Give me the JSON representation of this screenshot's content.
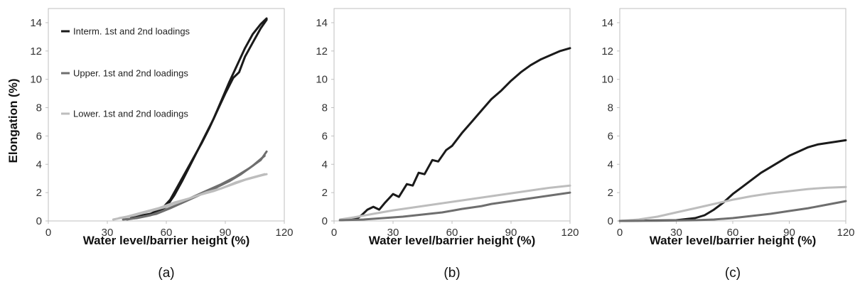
{
  "figure": {
    "y_axis_title": "Elongation (%)",
    "x_axis_title": "Water level/barrier height (%)"
  },
  "colors": {
    "interm": "#1a1a1a",
    "upper": "#6e6e6e",
    "lower": "#bdbdbd",
    "axis": "#bfbfbf"
  },
  "chart_data": [
    {
      "type": "line",
      "panel_label": "(a)",
      "xlabel": "Water level/barrier height (%)",
      "ylabel": "Elongation (%)",
      "xlim": [
        0,
        120
      ],
      "ylim": [
        0,
        15
      ],
      "xticks": [
        0,
        30,
        60,
        90,
        120
      ],
      "yticks": [
        0,
        2,
        4,
        6,
        8,
        10,
        12,
        14
      ],
      "legend_placement": "top-left",
      "series": [
        {
          "name": "Interm. 1st and 2nd loadings",
          "color_key": "interm",
          "points": [
            [
              42,
              0.2
            ],
            [
              50,
              0.4
            ],
            [
              56,
              0.7
            ],
            [
              60,
              1.0
            ],
            [
              64,
              1.8
            ],
            [
              68,
              2.8
            ],
            [
              72,
              3.9
            ],
            [
              76,
              5.0
            ],
            [
              80,
              6.1
            ],
            [
              84,
              7.2
            ],
            [
              88,
              8.5
            ],
            [
              92,
              9.8
            ],
            [
              96,
              11.0
            ],
            [
              100,
              12.2
            ],
            [
              104,
              13.2
            ],
            [
              108,
              13.9
            ],
            [
              111,
              14.3
            ]
          ]
        },
        {
          "name": "",
          "color_key": "interm",
          "points": [
            [
              44,
              0.3
            ],
            [
              52,
              0.5
            ],
            [
              58,
              0.9
            ],
            [
              62,
              1.5
            ],
            [
              66,
              2.5
            ],
            [
              70,
              3.5
            ],
            [
              74,
              4.5
            ],
            [
              78,
              5.5
            ],
            [
              82,
              6.6
            ],
            [
              86,
              7.8
            ],
            [
              90,
              9.0
            ],
            [
              94,
              10.1
            ],
            [
              97,
              10.5
            ],
            [
              100,
              11.6
            ],
            [
              104,
              12.6
            ],
            [
              108,
              13.6
            ],
            [
              111,
              14.2
            ]
          ]
        },
        {
          "name": "Upper. 1st and 2nd loadings",
          "color_key": "upper",
          "points": [
            [
              38,
              0.1
            ],
            [
              45,
              0.2
            ],
            [
              52,
              0.4
            ],
            [
              58,
              0.7
            ],
            [
              65,
              1.1
            ],
            [
              72,
              1.6
            ],
            [
              80,
              2.1
            ],
            [
              88,
              2.6
            ],
            [
              95,
              3.1
            ],
            [
              102,
              3.7
            ],
            [
              108,
              4.3
            ],
            [
              111,
              4.9
            ]
          ]
        },
        {
          "name": "",
          "color_key": "upper",
          "points": [
            [
              40,
              0.1
            ],
            [
              48,
              0.3
            ],
            [
              55,
              0.5
            ],
            [
              62,
              0.9
            ],
            [
              70,
              1.4
            ],
            [
              78,
              1.9
            ],
            [
              86,
              2.4
            ],
            [
              92,
              2.8
            ],
            [
              98,
              3.3
            ],
            [
              104,
              3.9
            ],
            [
              110,
              4.6
            ]
          ]
        },
        {
          "name": "Lower. 1st and 2nd loadings",
          "color_key": "lower",
          "points": [
            [
              33,
              0.1
            ],
            [
              40,
              0.3
            ],
            [
              48,
              0.6
            ],
            [
              56,
              0.9
            ],
            [
              64,
              1.3
            ],
            [
              72,
              1.6
            ],
            [
              80,
              2.0
            ],
            [
              88,
              2.3
            ],
            [
              95,
              2.7
            ],
            [
              102,
              3.0
            ],
            [
              110,
              3.3
            ]
          ]
        },
        {
          "name": "",
          "color_key": "lower",
          "points": [
            [
              36,
              0.2
            ],
            [
              44,
              0.4
            ],
            [
              52,
              0.7
            ],
            [
              60,
              1.0
            ],
            [
              68,
              1.4
            ],
            [
              76,
              1.8
            ],
            [
              84,
              2.1
            ],
            [
              92,
              2.5
            ],
            [
              100,
              2.9
            ],
            [
              108,
              3.2
            ],
            [
              111,
              3.3
            ]
          ]
        }
      ]
    },
    {
      "type": "line",
      "panel_label": "(b)",
      "xlabel": "Water level/barrier height (%)",
      "ylabel": "",
      "xlim": [
        0,
        120
      ],
      "ylim": [
        0,
        15
      ],
      "xticks": [
        0,
        30,
        60,
        90,
        120
      ],
      "yticks": [
        0,
        2,
        4,
        6,
        8,
        10,
        12,
        14
      ],
      "series": [
        {
          "name": "",
          "color_key": "interm",
          "points": [
            [
              3,
              0.05
            ],
            [
              8,
              0.1
            ],
            [
              12,
              0.2
            ],
            [
              14,
              0.4
            ],
            [
              17,
              0.8
            ],
            [
              20,
              1.0
            ],
            [
              23,
              0.8
            ],
            [
              26,
              1.3
            ],
            [
              30,
              1.9
            ],
            [
              33,
              1.7
            ],
            [
              37,
              2.6
            ],
            [
              40,
              2.5
            ],
            [
              43,
              3.4
            ],
            [
              46,
              3.3
            ],
            [
              50,
              4.3
            ],
            [
              53,
              4.2
            ],
            [
              57,
              5.0
            ],
            [
              60,
              5.3
            ],
            [
              65,
              6.2
            ],
            [
              70,
              7.0
            ],
            [
              75,
              7.8
            ],
            [
              80,
              8.6
            ],
            [
              85,
              9.2
            ],
            [
              90,
              9.9
            ],
            [
              95,
              10.5
            ],
            [
              100,
              11.0
            ],
            [
              105,
              11.4
            ],
            [
              110,
              11.7
            ],
            [
              115,
              12.0
            ],
            [
              120,
              12.2
            ]
          ]
        },
        {
          "name": "",
          "color_key": "lower",
          "points": [
            [
              3,
              0.1
            ],
            [
              10,
              0.25
            ],
            [
              20,
              0.5
            ],
            [
              30,
              0.75
            ],
            [
              40,
              0.95
            ],
            [
              50,
              1.15
            ],
            [
              60,
              1.35
            ],
            [
              70,
              1.55
            ],
            [
              80,
              1.75
            ],
            [
              90,
              1.95
            ],
            [
              100,
              2.15
            ],
            [
              110,
              2.35
            ],
            [
              120,
              2.5
            ]
          ]
        },
        {
          "name": "",
          "color_key": "upper",
          "points": [
            [
              3,
              0.05
            ],
            [
              15,
              0.1
            ],
            [
              25,
              0.2
            ],
            [
              35,
              0.3
            ],
            [
              45,
              0.45
            ],
            [
              55,
              0.6
            ],
            [
              60,
              0.72
            ],
            [
              65,
              0.85
            ],
            [
              70,
              0.95
            ],
            [
              75,
              1.05
            ],
            [
              80,
              1.2
            ],
            [
              90,
              1.4
            ],
            [
              100,
              1.6
            ],
            [
              110,
              1.8
            ],
            [
              120,
              2.0
            ]
          ]
        }
      ]
    },
    {
      "type": "line",
      "panel_label": "(c)",
      "xlabel": "Water level/barrier height (%)",
      "ylabel": "",
      "xlim": [
        0,
        120
      ],
      "ylim": [
        0,
        15
      ],
      "xticks": [
        0,
        30,
        60,
        90,
        120
      ],
      "yticks": [
        0,
        2,
        4,
        6,
        8,
        10,
        12,
        14
      ],
      "series": [
        {
          "name": "",
          "color_key": "interm",
          "points": [
            [
              0,
              0
            ],
            [
              30,
              0.05
            ],
            [
              40,
              0.2
            ],
            [
              45,
              0.4
            ],
            [
              50,
              0.8
            ],
            [
              55,
              1.3
            ],
            [
              60,
              1.9
            ],
            [
              65,
              2.4
            ],
            [
              70,
              2.9
            ],
            [
              75,
              3.4
            ],
            [
              80,
              3.8
            ],
            [
              85,
              4.2
            ],
            [
              90,
              4.6
            ],
            [
              95,
              4.9
            ],
            [
              100,
              5.2
            ],
            [
              105,
              5.4
            ],
            [
              110,
              5.5
            ],
            [
              115,
              5.6
            ],
            [
              120,
              5.7
            ]
          ]
        },
        {
          "name": "",
          "color_key": "lower",
          "points": [
            [
              0,
              0
            ],
            [
              10,
              0.1
            ],
            [
              20,
              0.3
            ],
            [
              30,
              0.6
            ],
            [
              40,
              0.9
            ],
            [
              50,
              1.2
            ],
            [
              60,
              1.5
            ],
            [
              70,
              1.75
            ],
            [
              80,
              1.95
            ],
            [
              90,
              2.1
            ],
            [
              100,
              2.25
            ],
            [
              110,
              2.35
            ],
            [
              120,
              2.4
            ]
          ]
        },
        {
          "name": "",
          "color_key": "upper",
          "points": [
            [
              0,
              0
            ],
            [
              20,
              0.01
            ],
            [
              40,
              0.05
            ],
            [
              50,
              0.1
            ],
            [
              60,
              0.2
            ],
            [
              70,
              0.35
            ],
            [
              80,
              0.5
            ],
            [
              90,
              0.7
            ],
            [
              100,
              0.9
            ],
            [
              110,
              1.15
            ],
            [
              120,
              1.4
            ]
          ]
        }
      ]
    }
  ]
}
